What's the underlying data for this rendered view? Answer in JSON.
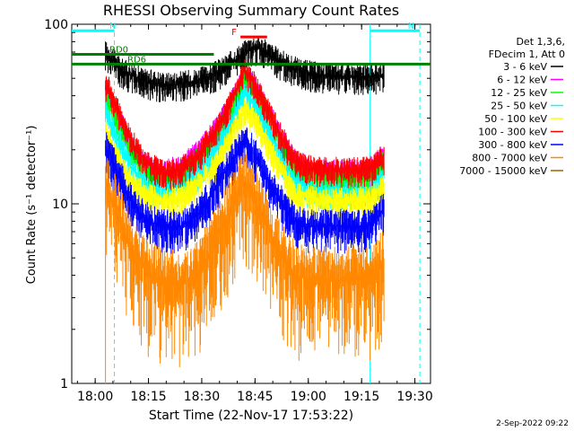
{
  "chart_data": {
    "type": "line",
    "title": "RHESSI Observing Summary Count Rates",
    "xlabel": "Start Time (22-Nov-17 17:53:22)",
    "ylabel": "Count Rate (s⁻¹ detector⁻¹)",
    "y_scale": "log",
    "ylim": [
      1,
      100
    ],
    "xlim_minutes_after_start": [
      0,
      101
    ],
    "x_ticks": [
      {
        "label": "18:00",
        "min": 6.6
      },
      {
        "label": "18:15",
        "min": 21.6
      },
      {
        "label": "18:30",
        "min": 36.6
      },
      {
        "label": "18:45",
        "min": 51.6
      },
      {
        "label": "19:00",
        "min": 66.6
      },
      {
        "label": "19:15",
        "min": 81.6
      },
      {
        "label": "19:30",
        "min": 96.6
      }
    ],
    "y_ticks": [
      {
        "label": "1",
        "value": 1
      },
      {
        "label": "10",
        "value": 10
      },
      {
        "label": "100",
        "value": 100
      }
    ],
    "legend_header": [
      "Det 1,3,6,",
      "FDecim 1, Att 0"
    ],
    "legend_position": "right",
    "series": [
      {
        "name": "3 - 6 keV",
        "color": "#000000",
        "points": [
          [
            9.5,
            69
          ],
          [
            12,
            62
          ],
          [
            14,
            55
          ],
          [
            17,
            52
          ],
          [
            21,
            48
          ],
          [
            27,
            46
          ],
          [
            32,
            47
          ],
          [
            38,
            50
          ],
          [
            42,
            55
          ],
          [
            46,
            63
          ],
          [
            49,
            70
          ],
          [
            51,
            74
          ],
          [
            53,
            73
          ],
          [
            55,
            69
          ],
          [
            58,
            63
          ],
          [
            62,
            57
          ],
          [
            66,
            54
          ],
          [
            70,
            52
          ],
          [
            76,
            51
          ],
          [
            82,
            51
          ],
          [
            88,
            52
          ]
        ]
      },
      {
        "name": "6 - 12 keV",
        "color": "#ff00ff",
        "points": [
          [
            9.5,
            44
          ],
          [
            12,
            34
          ],
          [
            14,
            28
          ],
          [
            16,
            23
          ],
          [
            19,
            18
          ],
          [
            22,
            16
          ],
          [
            26,
            15
          ],
          [
            31,
            16
          ],
          [
            36,
            20
          ],
          [
            40,
            25
          ],
          [
            44,
            33
          ],
          [
            47,
            44
          ],
          [
            48.5,
            52
          ],
          [
            50,
            50
          ],
          [
            52,
            42
          ],
          [
            55,
            33
          ],
          [
            58,
            26
          ],
          [
            61,
            20
          ],
          [
            63,
            17
          ],
          [
            66,
            16
          ],
          [
            70,
            15
          ],
          [
            76,
            15
          ],
          [
            82,
            15
          ],
          [
            85,
            16
          ],
          [
            88,
            19
          ]
        ]
      },
      {
        "name": "12 - 25 keV",
        "color": "#00ff00",
        "points": [
          [
            9.5,
            40
          ],
          [
            12,
            31
          ],
          [
            14,
            25
          ],
          [
            16,
            21
          ],
          [
            19,
            16
          ],
          [
            22,
            14
          ],
          [
            26,
            13.5
          ],
          [
            31,
            14
          ],
          [
            36,
            18
          ],
          [
            40,
            23
          ],
          [
            44,
            31
          ],
          [
            47,
            42
          ],
          [
            48.5,
            50
          ],
          [
            50,
            48
          ],
          [
            52,
            40
          ],
          [
            55,
            31
          ],
          [
            58,
            24
          ],
          [
            61,
            18
          ],
          [
            63,
            15
          ],
          [
            66,
            14
          ],
          [
            70,
            13.5
          ],
          [
            76,
            13.5
          ],
          [
            82,
            13.5
          ],
          [
            85,
            14
          ],
          [
            88,
            17
          ]
        ]
      },
      {
        "name": "25 - 50 keV",
        "color": "#00ffff",
        "points": [
          [
            9.5,
            33
          ],
          [
            12,
            26
          ],
          [
            14,
            21
          ],
          [
            16,
            17
          ],
          [
            19,
            14
          ],
          [
            22,
            12
          ],
          [
            26,
            11.5
          ],
          [
            31,
            12
          ],
          [
            36,
            15
          ],
          [
            40,
            19
          ],
          [
            44,
            26
          ],
          [
            47,
            35
          ],
          [
            48.5,
            41
          ],
          [
            50,
            40
          ],
          [
            52,
            34
          ],
          [
            55,
            26
          ],
          [
            58,
            20
          ],
          [
            61,
            15
          ],
          [
            63,
            13
          ],
          [
            66,
            12
          ],
          [
            70,
            11.5
          ],
          [
            76,
            11.5
          ],
          [
            82,
            11.5
          ],
          [
            85,
            12
          ],
          [
            88,
            14
          ]
        ]
      },
      {
        "name": "50 - 100 keV",
        "color": "#ffff00",
        "points": [
          [
            9.5,
            25
          ],
          [
            12,
            20
          ],
          [
            14,
            16
          ],
          [
            16,
            14
          ],
          [
            19,
            12
          ],
          [
            22,
            11
          ],
          [
            26,
            10.5
          ],
          [
            31,
            11
          ],
          [
            36,
            13
          ],
          [
            40,
            16
          ],
          [
            44,
            22
          ],
          [
            47,
            29
          ],
          [
            48.5,
            33
          ],
          [
            50,
            32
          ],
          [
            52,
            28
          ],
          [
            55,
            22
          ],
          [
            58,
            17
          ],
          [
            61,
            13
          ],
          [
            63,
            11.5
          ],
          [
            66,
            11
          ],
          [
            70,
            10.5
          ],
          [
            76,
            10.5
          ],
          [
            82,
            10.5
          ],
          [
            85,
            11
          ],
          [
            88,
            12.5
          ]
        ]
      },
      {
        "name": "100 - 300 keV",
        "color": "#ff0000",
        "points": [
          [
            9.5,
            48
          ],
          [
            12,
            37
          ],
          [
            14,
            30
          ],
          [
            16,
            24
          ],
          [
            19,
            19
          ],
          [
            22,
            16.5
          ],
          [
            26,
            15
          ],
          [
            31,
            15.5
          ],
          [
            36,
            19
          ],
          [
            40,
            25
          ],
          [
            44,
            34
          ],
          [
            47,
            45
          ],
          [
            48.5,
            55
          ],
          [
            50,
            52
          ],
          [
            52,
            44
          ],
          [
            55,
            34
          ],
          [
            58,
            26
          ],
          [
            61,
            20
          ],
          [
            63,
            17
          ],
          [
            66,
            16
          ],
          [
            70,
            15.5
          ],
          [
            76,
            15.5
          ],
          [
            82,
            15.5
          ],
          [
            85,
            16
          ],
          [
            88,
            18
          ]
        ]
      },
      {
        "name": "300 - 800 keV",
        "color": "#0000ff",
        "points": [
          [
            9.5,
            21
          ],
          [
            12,
            16.5
          ],
          [
            14,
            14
          ],
          [
            16,
            11
          ],
          [
            19,
            9
          ],
          [
            22,
            8
          ],
          [
            26,
            7.5
          ],
          [
            31,
            7.5
          ],
          [
            36,
            9
          ],
          [
            40,
            12
          ],
          [
            44,
            16
          ],
          [
            47,
            20
          ],
          [
            48.5,
            22
          ],
          [
            50,
            21
          ],
          [
            52,
            18
          ],
          [
            55,
            14
          ],
          [
            58,
            11
          ],
          [
            61,
            9
          ],
          [
            63,
            8
          ],
          [
            66,
            7.5
          ],
          [
            70,
            7.5
          ],
          [
            76,
            7.5
          ],
          [
            82,
            7.5
          ],
          [
            85,
            8
          ],
          [
            88,
            9.5
          ]
        ]
      },
      {
        "name": "800 - 7000 keV",
        "color": "#ff8800",
        "points": [
          [
            9.5,
            12.5
          ],
          [
            12,
            10
          ],
          [
            14,
            8
          ],
          [
            16,
            6
          ],
          [
            19,
            4.8
          ],
          [
            22,
            4
          ],
          [
            26,
            3.6
          ],
          [
            31,
            3.6
          ],
          [
            36,
            4.3
          ],
          [
            40,
            6
          ],
          [
            44,
            8.5
          ],
          [
            47,
            12
          ],
          [
            48.5,
            13
          ],
          [
            50,
            12.5
          ],
          [
            52,
            10
          ],
          [
            55,
            7.5
          ],
          [
            58,
            5.5
          ],
          [
            61,
            4.5
          ],
          [
            63,
            4
          ],
          [
            66,
            3.8
          ],
          [
            70,
            3.8
          ],
          [
            76,
            3.8
          ],
          [
            82,
            3.8
          ],
          [
            85,
            4
          ],
          [
            88,
            4.8
          ]
        ]
      },
      {
        "name": "7000 - 15000 keV",
        "color": "#996600",
        "points": []
      }
    ],
    "annotations": [
      {
        "label": "N",
        "color": "#00ffff",
        "x_range": [
          0,
          12
        ],
        "y": 92
      },
      {
        "label": "N",
        "color": "#00ffff",
        "x_range": [
          84,
          98
        ],
        "y": 92
      },
      {
        "label": "RD0",
        "color": "#008000",
        "x_range": [
          0,
          40
        ],
        "y": 68
      },
      {
        "label": "RD6",
        "color": "#008000",
        "x_range": [
          0,
          101
        ],
        "y": 60
      },
      {
        "label": "F",
        "color": "#ff0000",
        "x_range": [
          47.5,
          55
        ],
        "y": 85
      }
    ],
    "vertical_lines": [
      {
        "color": "#00ffff",
        "style": "dashed",
        "x": 12
      },
      {
        "color": "#00ffff",
        "style": "solid",
        "x": 84
      },
      {
        "color": "#00ffff",
        "style": "dashed",
        "x": 98
      }
    ]
  },
  "footer_date": "2-Sep-2022 09:22"
}
